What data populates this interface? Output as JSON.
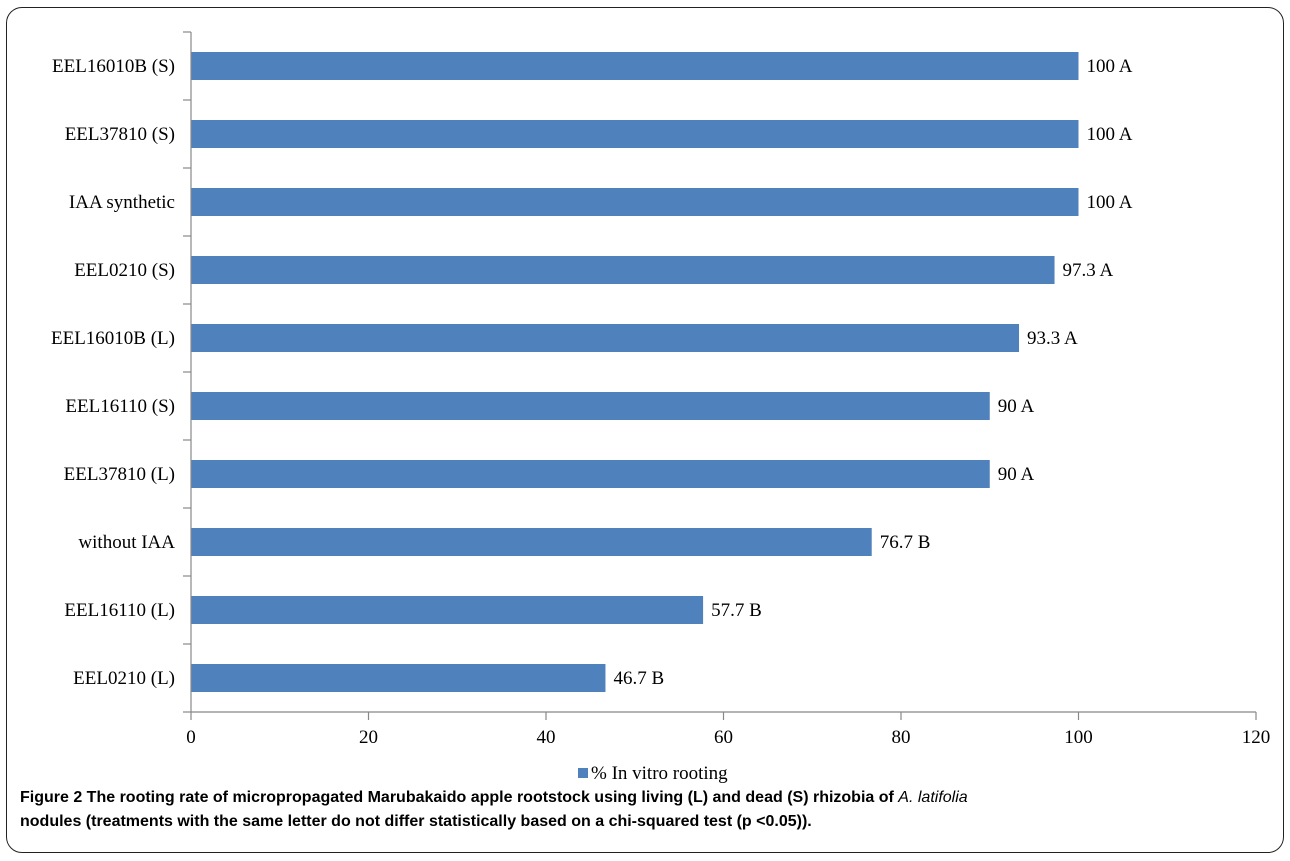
{
  "chart_data": {
    "type": "bar",
    "orientation": "horizontal",
    "categories": [
      "EEL16010B (S)",
      "EEL37810 (S)",
      "IAA synthetic",
      "EEL0210 (S)",
      "EEL16010B (L)",
      "EEL16110 (S)",
      "EEL37810 (L)",
      "without IAA",
      "EEL16110 (L)",
      "EEL0210 (L)"
    ],
    "series": [
      {
        "name": "% In vitro rooting",
        "values": [
          100,
          100,
          100,
          97.3,
          93.3,
          90,
          90,
          76.7,
          57.7,
          46.7
        ],
        "labels": [
          "100 A",
          "100 A",
          "100 A",
          "97.3 A",
          "93.3 A",
          "90 A",
          "90 A",
          "76.7 B",
          "57.7 B",
          "46.7 B"
        ]
      }
    ],
    "xlim": [
      0,
      120
    ],
    "xticks": [
      "0",
      "20",
      "40",
      "60",
      "80",
      "100",
      "120"
    ],
    "bar_color": "#4f81bd",
    "legend_position": "bottom"
  },
  "caption": {
    "lead": "Figure 2 The rooting rate of micropropagated Marubakaido apple rootstock using living (L) and dead (S) rhizobia of ",
    "italic": "A. latifolia",
    "rest": "nodules (treatments with the same letter do not differ statistically based on a chi-squared test (p <0.05))."
  }
}
